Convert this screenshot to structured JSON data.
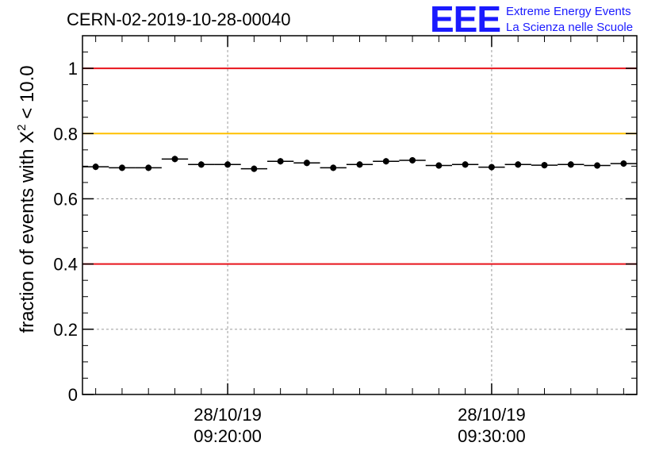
{
  "header": {
    "run_title": "CERN-02-2019-10-28-00040",
    "logo_mark": "EEE",
    "logo_line1": "Extreme Energy Events",
    "logo_line2": "La Scienza nelle Scuole",
    "logo_color": "#1a1aff"
  },
  "chart_data": {
    "type": "scatter",
    "ylabel_main": "fraction of events with X",
    "ylabel_sup": "2",
    "ylabel_tail": " < 10.0",
    "xlabel": "",
    "x_unit": "minutes after 28/10/19 09:20:00",
    "ylim": [
      0,
      1.1
    ],
    "xlim": [
      -5.5,
      15.5
    ],
    "y_ticks": [
      {
        "value": 0,
        "label": "0"
      },
      {
        "value": 0.2,
        "label": "0.2"
      },
      {
        "value": 0.4,
        "label": "0.4"
      },
      {
        "value": 0.6,
        "label": "0.6"
      },
      {
        "value": 0.8,
        "label": "0.8"
      },
      {
        "value": 1,
        "label": "1"
      }
    ],
    "x_major_ticks": [
      {
        "value": 0,
        "date": "28/10/19",
        "time": "09:20:00"
      },
      {
        "value": 10,
        "date": "28/10/19",
        "time": "09:30:00"
      }
    ],
    "x_minor_step": 1,
    "grid": true,
    "reference_lines": [
      {
        "value": 1.0,
        "color": "#e8141c"
      },
      {
        "value": 0.8,
        "color": "#ffc000"
      },
      {
        "value": 0.4,
        "color": "#e8141c"
      }
    ],
    "bin_width": 1,
    "series": [
      {
        "color": "#000000",
        "x": [
          -5,
          -4,
          -3,
          -2,
          -1,
          0,
          1,
          2,
          3,
          4,
          5,
          6,
          7,
          8,
          9,
          10,
          11,
          12,
          13,
          14,
          15
        ],
        "y": [
          0.698,
          0.695,
          0.695,
          0.722,
          0.705,
          0.705,
          0.692,
          0.715,
          0.71,
          0.695,
          0.705,
          0.715,
          0.718,
          0.702,
          0.705,
          0.697,
          0.705,
          0.703,
          0.705,
          0.702,
          0.708
        ]
      }
    ]
  }
}
